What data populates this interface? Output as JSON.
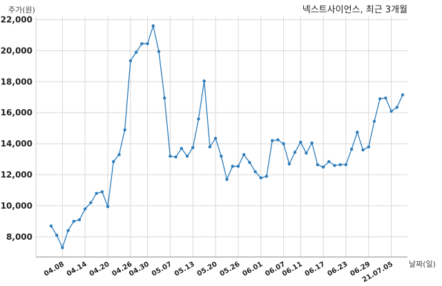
{
  "chart_data": {
    "type": "line",
    "title": "넥스트사이언스, 최근 3개월",
    "ylabel": "주가(원)",
    "xlabel": "날짜(일)",
    "ylim": [
      6700,
      22200
    ],
    "yticks": [
      8000,
      10000,
      12000,
      14000,
      16000,
      18000,
      20000,
      22000
    ],
    "ytick_labels": [
      "8,000",
      "10,000",
      "12,000",
      "14,000",
      "16,000",
      "18,000",
      "20,000",
      "22,000"
    ],
    "xtick_labels": [
      "04.08",
      "04.14",
      "04.20",
      "04.26",
      "04.30",
      "05.07",
      "05.13",
      "05.20",
      "05.26",
      "06.01",
      "06.07",
      "06.11",
      "06.17",
      "06.23",
      "06.29",
      "21.07.05"
    ],
    "xtick_index": [
      2,
      6,
      10,
      14,
      17,
      21,
      25,
      29,
      33,
      37,
      41,
      44,
      48,
      52,
      56,
      60
    ],
    "grid": true,
    "series": [
      {
        "color": "#2b7bba",
        "values": [
          8700,
          8100,
          7300,
          8400,
          9000,
          9100,
          9800,
          10200,
          10800,
          10900,
          9950,
          12850,
          13300,
          14900,
          19350,
          19900,
          20450,
          20450,
          21600,
          19950,
          16950,
          13200,
          13150,
          13700,
          13200,
          13750,
          15600,
          18050,
          13800,
          14350,
          13200,
          11700,
          12550,
          12550,
          13300,
          12800,
          12200,
          11800,
          11900,
          14200,
          14250,
          14000,
          12700,
          13450,
          14100,
          13400,
          14050,
          12650,
          12500,
          12850,
          12600,
          12650,
          12650,
          13650,
          14750,
          13600,
          13800,
          15450,
          16900,
          16950,
          16100,
          16350,
          17150
        ]
      }
    ]
  }
}
